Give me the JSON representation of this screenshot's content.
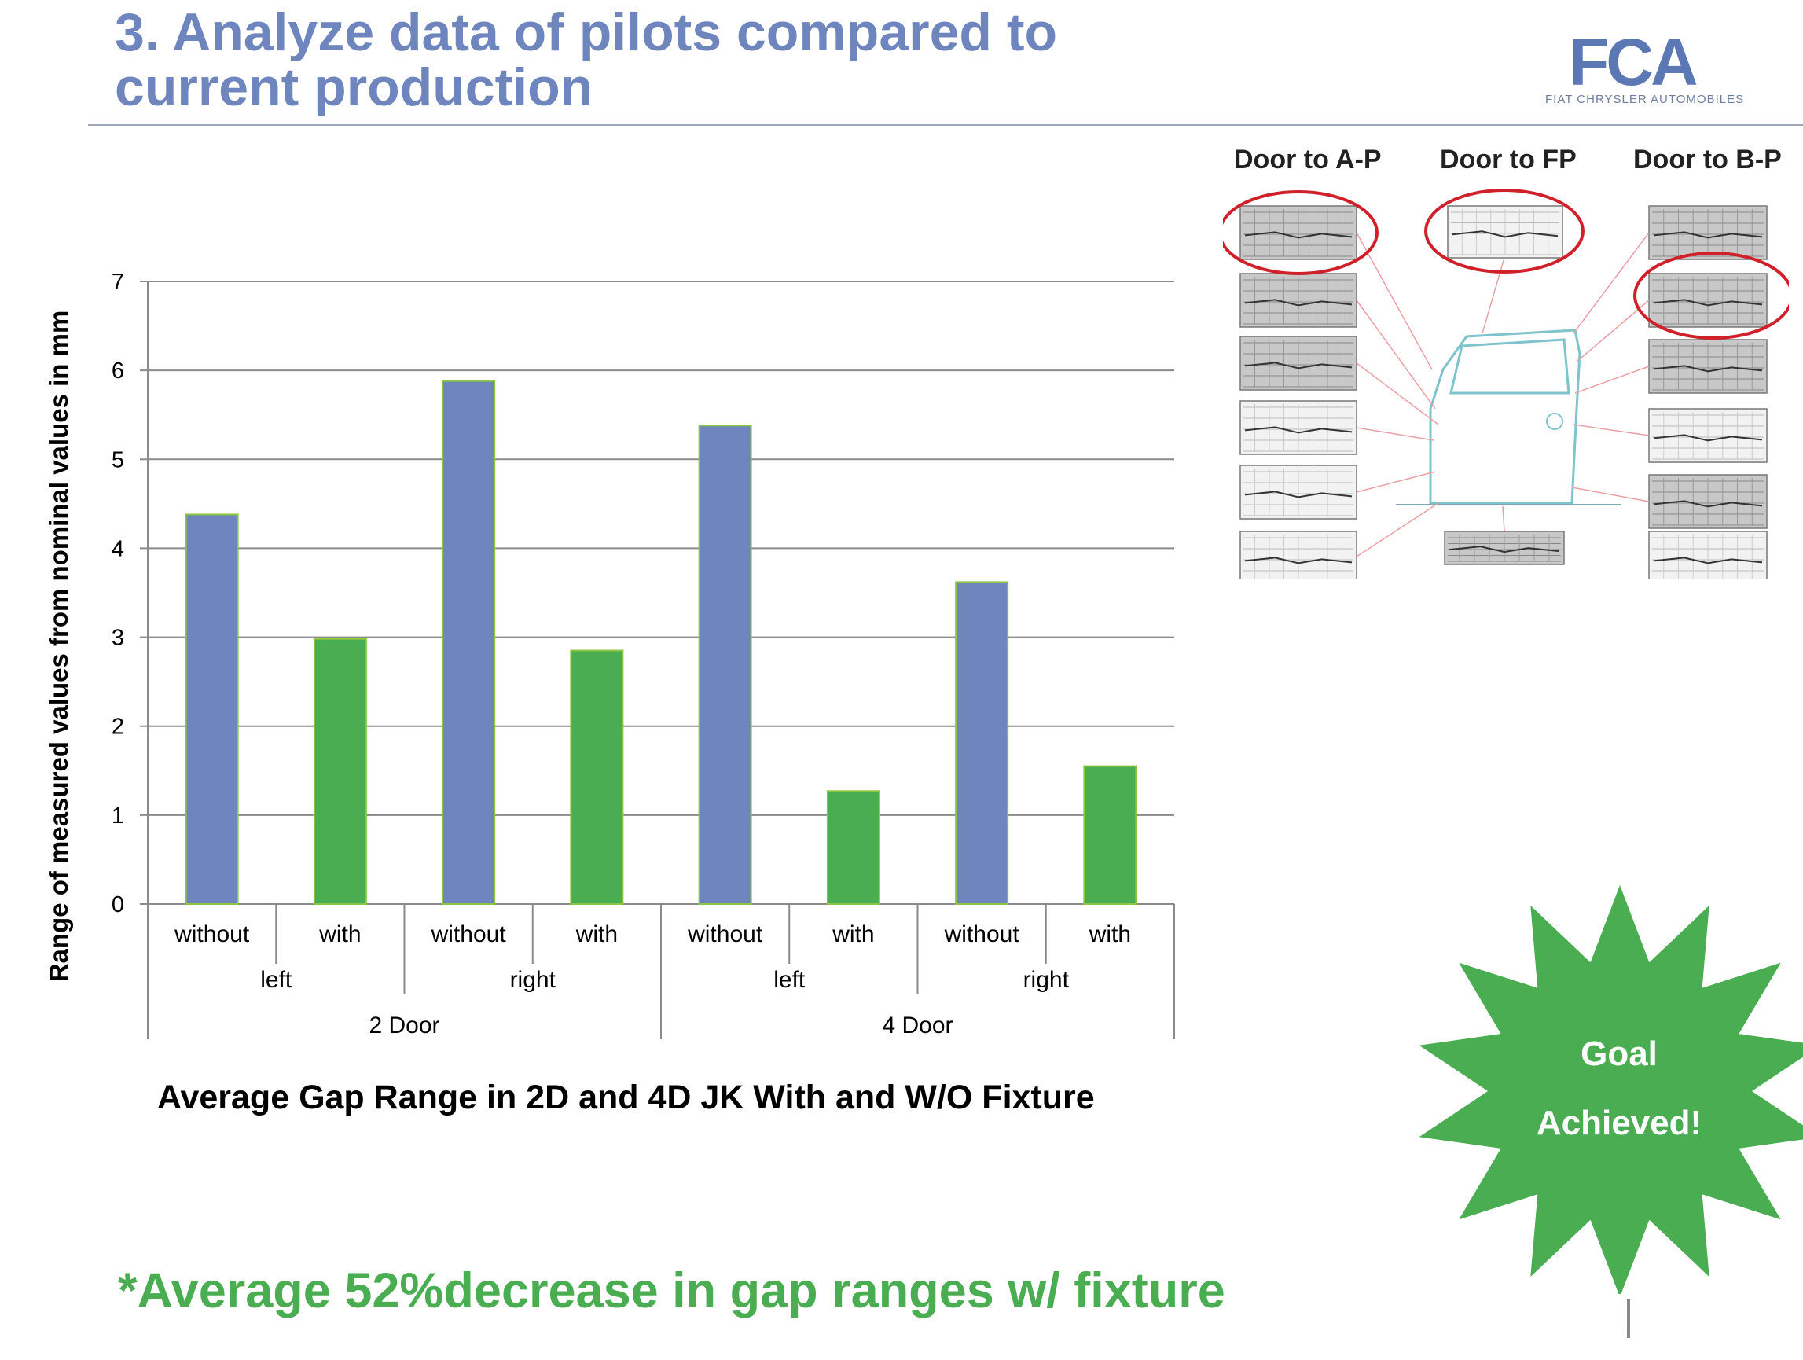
{
  "slide": {
    "title_line1": "3. Analyze data of pilots compared to",
    "title_line2": "current production",
    "logo_text": "FCA",
    "logo_subtitle": "FIAT CHRYSLER AUTOMOBILES",
    "caption": "Average Gap Range in 2D and 4D JK With and W/O Fixture",
    "footnote": "*Average 52%decrease in gap ranges w/ fixture",
    "badge_line1": "Goal",
    "badge_line2": "Achieved!",
    "door_headers": [
      "Door to A-P",
      "Door to FP",
      "Door to B-P"
    ],
    "colors": {
      "title": "#6e86bd",
      "without": "#6e86bd",
      "with": "#4aad52",
      "accent_green": "#4aad52",
      "highlight_ring": "#d0202a"
    }
  },
  "chart_data": {
    "type": "bar",
    "ylabel": "Range of measured values from nominal values in mm",
    "ylim": [
      0,
      7
    ],
    "yticks": [
      0,
      1,
      2,
      3,
      4,
      5,
      6,
      7
    ],
    "grid": true,
    "categories": [
      {
        "level1": "without",
        "level2": "left",
        "level3": "2 Door",
        "value": 4.38,
        "fixture": "without"
      },
      {
        "level1": "with",
        "level2": "left",
        "level3": "2 Door",
        "value": 2.98,
        "fixture": "with"
      },
      {
        "level1": "without",
        "level2": "right",
        "level3": "2 Door",
        "value": 5.88,
        "fixture": "without"
      },
      {
        "level1": "with",
        "level2": "right",
        "level3": "2 Door",
        "value": 2.85,
        "fixture": "with"
      },
      {
        "level1": "without",
        "level2": "left",
        "level3": "4 Door",
        "value": 5.38,
        "fixture": "without"
      },
      {
        "level1": "with",
        "level2": "left",
        "level3": "4 Door",
        "value": 1.27,
        "fixture": "with"
      },
      {
        "level1": "without",
        "level2": "right",
        "level3": "4 Door",
        "value": 3.62,
        "fixture": "without"
      },
      {
        "level1": "with",
        "level2": "right",
        "level3": "4 Door",
        "value": 1.55,
        "fixture": "with"
      }
    ],
    "level2_groups": [
      "left",
      "right",
      "left",
      "right"
    ],
    "level3_groups": [
      "2 Door",
      "4 Door"
    ]
  }
}
